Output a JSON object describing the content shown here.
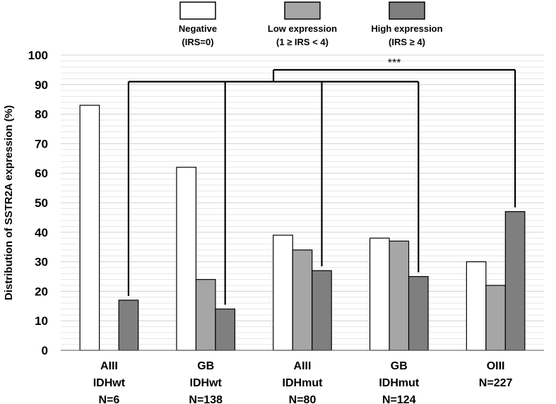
{
  "chart_data": {
    "type": "bar",
    "ylabel": "Distribution of SSTR2A expression  (%)",
    "ylim": [
      0,
      100
    ],
    "ytick_step": 10,
    "grid": true,
    "categories": [
      [
        "AIII",
        "IDHwt",
        "N=6"
      ],
      [
        "GB",
        "IDHwt",
        "N=138"
      ],
      [
        "AIII",
        "IDHmut",
        "N=80"
      ],
      [
        "GB",
        "IDHmut",
        "N=124"
      ],
      [
        "OIII",
        "N=227"
      ]
    ],
    "series": [
      {
        "name": "Negative",
        "sublabel": "(IRS=0)",
        "color": "#ffffff",
        "values": [
          83,
          62,
          39,
          38,
          30
        ]
      },
      {
        "name": "Low expression",
        "sublabel": "(1 ≥ IRS < 4)",
        "color": "#a6a6a6",
        "values": [
          0,
          24,
          34,
          37,
          22
        ]
      },
      {
        "name": "High expression",
        "sublabel": "(IRS ≥ 4)",
        "color": "#7f7f7f",
        "values": [
          17,
          14,
          27,
          25,
          47
        ]
      }
    ],
    "annotation": "***",
    "brackets": {
      "inner_level": 91,
      "outer_level": 95,
      "inner_links": [
        0,
        1,
        2,
        3
      ],
      "outer_link": 4
    }
  }
}
